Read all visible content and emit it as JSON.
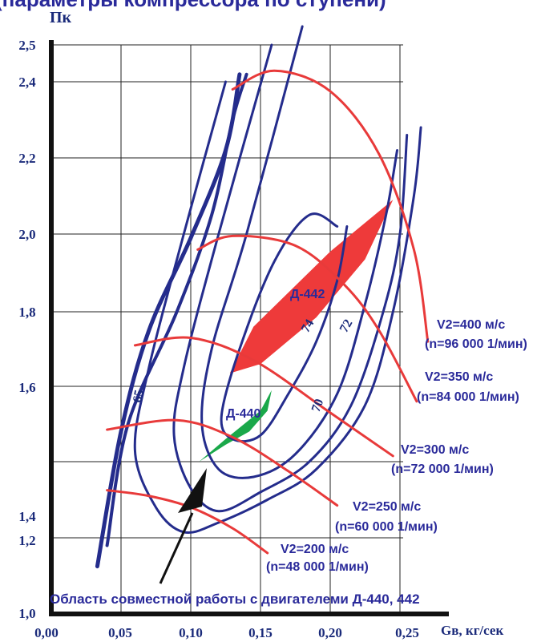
{
  "chart_data": {
    "type": "line",
    "title": "",
    "ylabel": "Пк",
    "xlabel": "Gв, кг/сек",
    "x_ticks": [
      "0,00",
      "0,05",
      "0,10",
      "0,15",
      "0,20",
      "0,25"
    ],
    "y_ticks": [
      {
        "value": 1.0,
        "label": "1,0"
      },
      {
        "value": 1.2,
        "label": "1,2"
      },
      {
        "value": 1.4,
        "label": "1,4"
      },
      {
        "value": 1.6,
        "label": "1,6"
      },
      {
        "value": 1.8,
        "label": "1,8"
      },
      {
        "value": 2.0,
        "label": "2,0"
      },
      {
        "value": 2.2,
        "label": "2,2"
      },
      {
        "value": 2.4,
        "label": "2,4"
      },
      {
        "value": 2.5,
        "label": "2,5"
      }
    ],
    "colors": {
      "speed_lines": "#e83a3a",
      "efficiency_lines": "#242c8c",
      "region_442": "#ee3a3a",
      "region_440": "#1aa84a",
      "arrow": "#111111",
      "text": "#2a2a9a"
    },
    "speed_lines": [
      {
        "v_label": "V2=200 м/с",
        "n_label": "(n=48 000 1/мин)",
        "points": [
          [
            0.04,
            1.325
          ],
          [
            0.07,
            1.31
          ],
          [
            0.1,
            1.28
          ],
          [
            0.13,
            1.225
          ],
          [
            0.155,
            1.16
          ]
        ]
      },
      {
        "v_label": "V2=250 м/с",
        "n_label": "(n=60 000 1/мин)",
        "points": [
          [
            0.04,
            1.485
          ],
          [
            0.09,
            1.51
          ],
          [
            0.13,
            1.465
          ],
          [
            0.17,
            1.375
          ],
          [
            0.205,
            1.285
          ]
        ]
      },
      {
        "v_label": "V2=300 м/с",
        "n_label": "(n=72 000 1/мин)",
        "points": [
          [
            0.06,
            1.71
          ],
          [
            0.1,
            1.73
          ],
          [
            0.145,
            1.67
          ],
          [
            0.2,
            1.53
          ],
          [
            0.245,
            1.415
          ]
        ]
      },
      {
        "v_label": "V2=350 м/с",
        "n_label": "(n=84 000 1/мин)",
        "points": [
          [
            0.105,
            1.96
          ],
          [
            0.13,
            1.995
          ],
          [
            0.175,
            1.97
          ],
          [
            0.21,
            1.87
          ],
          [
            0.235,
            1.75
          ],
          [
            0.262,
            1.56
          ]
        ]
      },
      {
        "v_label": "V2=400 м/с",
        "n_label": "(n=96 000 1/мин)",
        "points": [
          [
            0.13,
            2.38
          ],
          [
            0.16,
            2.43
          ],
          [
            0.2,
            2.375
          ],
          [
            0.235,
            2.21
          ],
          [
            0.26,
            1.96
          ],
          [
            0.27,
            1.72
          ]
        ]
      }
    ],
    "efficiency_lines": [
      {
        "label": "65",
        "points": [
          [
            0.033,
            1.125
          ],
          [
            0.06,
            1.625
          ],
          [
            0.12,
            2.25
          ],
          [
            0.132,
            2.41
          ]
        ]
      },
      {
        "label": "70",
        "points": [
          [
            0.105,
            1.29
          ],
          [
            0.085,
            1.48
          ],
          [
            0.12,
            1.85
          ],
          [
            0.175,
            2.5
          ]
        ]
      },
      {
        "label": "72",
        "points": [
          [
            0.12,
            1.21
          ],
          [
            0.2,
            1.42
          ],
          [
            0.24,
            1.8
          ],
          [
            0.258,
            2.23
          ]
        ]
      },
      {
        "label": "74",
        "points": [
          [
            0.125,
            1.45
          ],
          [
            0.15,
            1.64
          ],
          [
            0.18,
            1.99
          ],
          [
            0.215,
            2.1
          ]
        ]
      }
    ],
    "labels": {
      "d442": "Д-442",
      "d440": "Д-440"
    },
    "footer": "Область совместной работы с двигателеми Д-440, 442",
    "header_partial": "(параметры компрессора по ступени)",
    "grid": true
  }
}
